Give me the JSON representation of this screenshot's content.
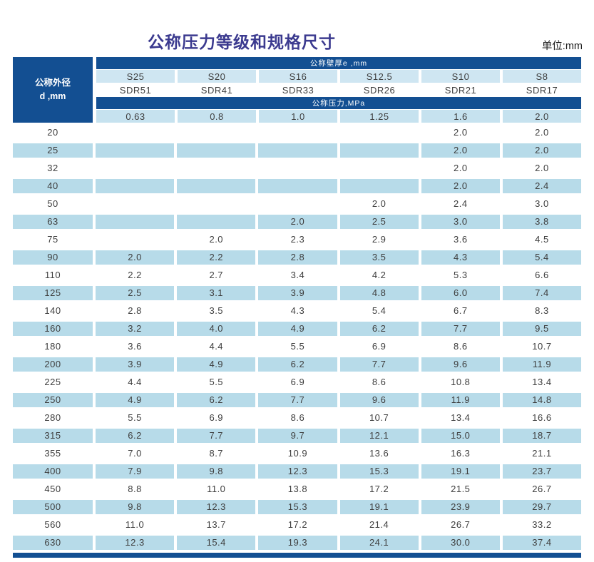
{
  "title": "公称压力等级和规格尺寸",
  "unit_label": "单位:mm",
  "colors": {
    "dark_blue": "#134f92",
    "header_light_blue": "#cfe6f2",
    "pressure_light_blue": "#c6e2ef",
    "row_light_blue": "#b7dbe9",
    "title_color": "#3b3a8f",
    "text_color": "#3e3e3e"
  },
  "table": {
    "corner": {
      "line1": "公称外径",
      "line2": "d ,mm"
    },
    "wall_thickness_band": "公称壁厚e ,mm",
    "pressure_band": "公称压力,MPa",
    "series_labels": [
      "S25",
      "S20",
      "S16",
      "S12.5",
      "S10",
      "S8"
    ],
    "sdr_labels": [
      "SDR51",
      "SDR41",
      "SDR33",
      "SDR26",
      "SDR21",
      "SDR17"
    ],
    "pressure_values": [
      "0.63",
      "0.8",
      "1.0",
      "1.25",
      "1.6",
      "2.0"
    ],
    "rows": [
      {
        "d": "20",
        "values": [
          "",
          "",
          "",
          "",
          "2.0",
          "2.0"
        ]
      },
      {
        "d": "25",
        "values": [
          "",
          "",
          "",
          "",
          "2.0",
          "2.0"
        ]
      },
      {
        "d": "32",
        "values": [
          "",
          "",
          "",
          "",
          "2.0",
          "2.0"
        ]
      },
      {
        "d": "40",
        "values": [
          "",
          "",
          "",
          "",
          "2.0",
          "2.4"
        ]
      },
      {
        "d": "50",
        "values": [
          "",
          "",
          "",
          "2.0",
          "2.4",
          "3.0"
        ]
      },
      {
        "d": "63",
        "values": [
          "",
          "",
          "2.0",
          "2.5",
          "3.0",
          "3.8"
        ]
      },
      {
        "d": "75",
        "values": [
          "",
          "2.0",
          "2.3",
          "2.9",
          "3.6",
          "4.5"
        ]
      },
      {
        "d": "90",
        "values": [
          "2.0",
          "2.2",
          "2.8",
          "3.5",
          "4.3",
          "5.4"
        ]
      },
      {
        "d": "110",
        "values": [
          "2.2",
          "2.7",
          "3.4",
          "4.2",
          "5.3",
          "6.6"
        ]
      },
      {
        "d": "125",
        "values": [
          "2.5",
          "3.1",
          "3.9",
          "4.8",
          "6.0",
          "7.4"
        ]
      },
      {
        "d": "140",
        "values": [
          "2.8",
          "3.5",
          "4.3",
          "5.4",
          "6.7",
          "8.3"
        ]
      },
      {
        "d": "160",
        "values": [
          "3.2",
          "4.0",
          "4.9",
          "6.2",
          "7.7",
          "9.5"
        ]
      },
      {
        "d": "180",
        "values": [
          "3.6",
          "4.4",
          "5.5",
          "6.9",
          "8.6",
          "10.7"
        ]
      },
      {
        "d": "200",
        "values": [
          "3.9",
          "4.9",
          "6.2",
          "7.7",
          "9.6",
          "11.9"
        ]
      },
      {
        "d": "225",
        "values": [
          "4.4",
          "5.5",
          "6.9",
          "8.6",
          "10.8",
          "13.4"
        ]
      },
      {
        "d": "250",
        "values": [
          "4.9",
          "6.2",
          "7.7",
          "9.6",
          "11.9",
          "14.8"
        ]
      },
      {
        "d": "280",
        "values": [
          "5.5",
          "6.9",
          "8.6",
          "10.7",
          "13.4",
          "16.6"
        ]
      },
      {
        "d": "315",
        "values": [
          "6.2",
          "7.7",
          "9.7",
          "12.1",
          "15.0",
          "18.7"
        ]
      },
      {
        "d": "355",
        "values": [
          "7.0",
          "8.7",
          "10.9",
          "13.6",
          "16.3",
          "21.1"
        ]
      },
      {
        "d": "400",
        "values": [
          "7.9",
          "9.8",
          "12.3",
          "15.3",
          "19.1",
          "23.7"
        ]
      },
      {
        "d": "450",
        "values": [
          "8.8",
          "11.0",
          "13.8",
          "17.2",
          "21.5",
          "26.7"
        ]
      },
      {
        "d": "500",
        "values": [
          "9.8",
          "12.3",
          "15.3",
          "19.1",
          "23.9",
          "29.7"
        ]
      },
      {
        "d": "560",
        "values": [
          "11.0",
          "13.7",
          "17.2",
          "21.4",
          "26.7",
          "33.2"
        ]
      },
      {
        "d": "630",
        "values": [
          "12.3",
          "15.4",
          "19.3",
          "24.1",
          "30.0",
          "37.4"
        ]
      }
    ]
  }
}
